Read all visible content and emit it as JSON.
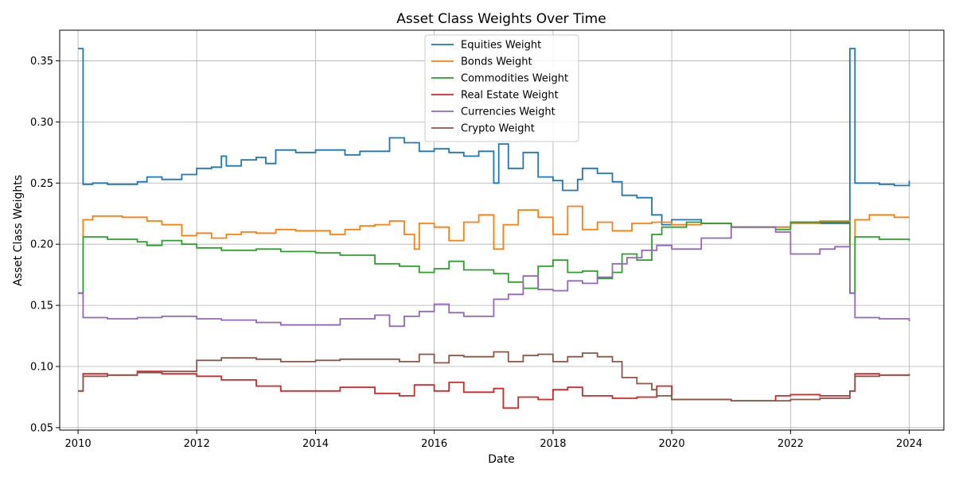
{
  "chart_data": {
    "type": "line",
    "step": true,
    "title": "Asset Class Weights Over Time",
    "xlabel": "Date",
    "ylabel": "Asset Class Weights",
    "xlim": [
      "2009-09-10",
      "2024-08-01"
    ],
    "ylim": [
      0.048,
      0.375
    ],
    "x_ticks": [
      "2010",
      "2012",
      "2014",
      "2016",
      "2018",
      "2020",
      "2022",
      "2024"
    ],
    "y_ticks": [
      "0.05",
      "0.10",
      "0.15",
      "0.20",
      "0.25",
      "0.30",
      "0.35"
    ],
    "grid": true,
    "legend_position": "top-center",
    "series": [
      {
        "name": "Equities Weight",
        "color": "#1f77b4",
        "points": [
          [
            "2010-01-01",
            0.36
          ],
          [
            "2010-02-01",
            0.249
          ],
          [
            "2010-04-01",
            0.25
          ],
          [
            "2010-07-01",
            0.249
          ],
          [
            "2010-10-01",
            0.249
          ],
          [
            "2011-01-01",
            0.251
          ],
          [
            "2011-03-01",
            0.255
          ],
          [
            "2011-06-01",
            0.253
          ],
          [
            "2011-10-01",
            0.257
          ],
          [
            "2012-01-01",
            0.262
          ],
          [
            "2012-04-01",
            0.263
          ],
          [
            "2012-06-01",
            0.272
          ],
          [
            "2012-07-01",
            0.264
          ],
          [
            "2012-10-01",
            0.269
          ],
          [
            "2013-01-01",
            0.271
          ],
          [
            "2013-03-01",
            0.266
          ],
          [
            "2013-05-01",
            0.277
          ],
          [
            "2013-09-01",
            0.275
          ],
          [
            "2014-01-01",
            0.277
          ],
          [
            "2014-07-01",
            0.273
          ],
          [
            "2014-10-01",
            0.276
          ],
          [
            "2015-01-01",
            0.276
          ],
          [
            "2015-04-01",
            0.287
          ],
          [
            "2015-07-01",
            0.283
          ],
          [
            "2015-10-01",
            0.276
          ],
          [
            "2016-01-01",
            0.278
          ],
          [
            "2016-04-01",
            0.275
          ],
          [
            "2016-07-01",
            0.272
          ],
          [
            "2016-10-01",
            0.276
          ],
          [
            "2017-01-01",
            0.25
          ],
          [
            "2017-02-01",
            0.282
          ],
          [
            "2017-04-01",
            0.262
          ],
          [
            "2017-07-01",
            0.275
          ],
          [
            "2017-10-01",
            0.255
          ],
          [
            "2018-01-01",
            0.252
          ],
          [
            "2018-03-01",
            0.244
          ],
          [
            "2018-06-01",
            0.253
          ],
          [
            "2018-07-01",
            0.262
          ],
          [
            "2018-10-01",
            0.258
          ],
          [
            "2019-01-01",
            0.251
          ],
          [
            "2019-03-01",
            0.24
          ],
          [
            "2019-06-01",
            0.238
          ],
          [
            "2019-09-01",
            0.224
          ],
          [
            "2019-11-01",
            0.216
          ],
          [
            "2020-01-01",
            0.22
          ],
          [
            "2020-07-01",
            0.217
          ],
          [
            "2021-01-01",
            0.214
          ],
          [
            "2022-01-01",
            0.218
          ],
          [
            "2022-07-01",
            0.217
          ],
          [
            "2023-01-01",
            0.36
          ],
          [
            "2023-02-01",
            0.25
          ],
          [
            "2023-07-01",
            0.249
          ],
          [
            "2023-10-01",
            0.248
          ],
          [
            "2024-01-01",
            0.252
          ]
        ]
      },
      {
        "name": "Bonds Weight",
        "color": "#ff7f0e",
        "points": [
          [
            "2010-01-01",
            0.16
          ],
          [
            "2010-02-01",
            0.22
          ],
          [
            "2010-04-01",
            0.223
          ],
          [
            "2010-10-01",
            0.222
          ],
          [
            "2011-03-01",
            0.219
          ],
          [
            "2011-06-01",
            0.216
          ],
          [
            "2011-10-01",
            0.207
          ],
          [
            "2012-01-01",
            0.209
          ],
          [
            "2012-04-01",
            0.205
          ],
          [
            "2012-07-01",
            0.208
          ],
          [
            "2012-10-01",
            0.21
          ],
          [
            "2013-01-01",
            0.209
          ],
          [
            "2013-05-01",
            0.212
          ],
          [
            "2013-09-01",
            0.211
          ],
          [
            "2014-01-01",
            0.211
          ],
          [
            "2014-04-01",
            0.208
          ],
          [
            "2014-07-01",
            0.212
          ],
          [
            "2014-10-01",
            0.215
          ],
          [
            "2015-01-01",
            0.216
          ],
          [
            "2015-04-01",
            0.219
          ],
          [
            "2015-07-01",
            0.208
          ],
          [
            "2015-09-01",
            0.196
          ],
          [
            "2015-10-01",
            0.217
          ],
          [
            "2016-01-01",
            0.214
          ],
          [
            "2016-04-01",
            0.203
          ],
          [
            "2016-07-01",
            0.218
          ],
          [
            "2016-10-01",
            0.224
          ],
          [
            "2017-01-01",
            0.196
          ],
          [
            "2017-03-01",
            0.216
          ],
          [
            "2017-06-01",
            0.228
          ],
          [
            "2017-10-01",
            0.222
          ],
          [
            "2018-01-01",
            0.208
          ],
          [
            "2018-04-01",
            0.231
          ],
          [
            "2018-07-01",
            0.212
          ],
          [
            "2018-10-01",
            0.218
          ],
          [
            "2019-01-01",
            0.211
          ],
          [
            "2019-05-01",
            0.217
          ],
          [
            "2019-09-01",
            0.218
          ],
          [
            "2020-01-01",
            0.216
          ],
          [
            "2020-07-01",
            0.217
          ],
          [
            "2021-01-01",
            0.214
          ],
          [
            "2022-01-01",
            0.217
          ],
          [
            "2022-07-01",
            0.219
          ],
          [
            "2023-01-01",
            0.16
          ],
          [
            "2023-02-01",
            0.22
          ],
          [
            "2023-05-01",
            0.224
          ],
          [
            "2023-10-01",
            0.222
          ],
          [
            "2024-01-01",
            0.222
          ]
        ]
      },
      {
        "name": "Commodities Weight",
        "color": "#2ca02c",
        "points": [
          [
            "2010-01-01",
            0.16
          ],
          [
            "2010-02-01",
            0.206
          ],
          [
            "2010-07-01",
            0.204
          ],
          [
            "2011-01-01",
            0.202
          ],
          [
            "2011-03-01",
            0.199
          ],
          [
            "2011-06-01",
            0.203
          ],
          [
            "2011-10-01",
            0.2
          ],
          [
            "2012-01-01",
            0.197
          ],
          [
            "2012-06-01",
            0.195
          ],
          [
            "2013-01-01",
            0.196
          ],
          [
            "2013-06-01",
            0.194
          ],
          [
            "2014-01-01",
            0.193
          ],
          [
            "2014-06-01",
            0.191
          ],
          [
            "2015-01-01",
            0.184
          ],
          [
            "2015-06-01",
            0.182
          ],
          [
            "2015-10-01",
            0.177
          ],
          [
            "2016-01-01",
            0.18
          ],
          [
            "2016-04-01",
            0.186
          ],
          [
            "2016-07-01",
            0.179
          ],
          [
            "2017-01-01",
            0.176
          ],
          [
            "2017-04-01",
            0.169
          ],
          [
            "2017-07-01",
            0.164
          ],
          [
            "2017-10-01",
            0.182
          ],
          [
            "2018-01-01",
            0.187
          ],
          [
            "2018-04-01",
            0.177
          ],
          [
            "2018-07-01",
            0.178
          ],
          [
            "2018-10-01",
            0.172
          ],
          [
            "2019-01-01",
            0.177
          ],
          [
            "2019-03-01",
            0.192
          ],
          [
            "2019-06-01",
            0.187
          ],
          [
            "2019-09-01",
            0.208
          ],
          [
            "2019-11-01",
            0.214
          ],
          [
            "2020-04-01",
            0.218
          ],
          [
            "2020-07-01",
            0.217
          ],
          [
            "2021-01-01",
            0.214
          ],
          [
            "2021-10-01",
            0.212
          ],
          [
            "2022-01-01",
            0.218
          ],
          [
            "2022-07-01",
            0.218
          ],
          [
            "2023-01-01",
            0.16
          ],
          [
            "2023-02-01",
            0.206
          ],
          [
            "2023-07-01",
            0.204
          ],
          [
            "2024-01-01",
            0.203
          ]
        ]
      },
      {
        "name": "Real Estate Weight",
        "color": "#d62728",
        "points": [
          [
            "2010-01-01",
            0.08
          ],
          [
            "2010-02-01",
            0.094
          ],
          [
            "2010-07-01",
            0.093
          ],
          [
            "2011-01-01",
            0.096
          ],
          [
            "2011-06-01",
            0.094
          ],
          [
            "2012-01-01",
            0.092
          ],
          [
            "2012-06-01",
            0.089
          ],
          [
            "2013-01-01",
            0.084
          ],
          [
            "2013-06-01",
            0.08
          ],
          [
            "2014-01-01",
            0.08
          ],
          [
            "2014-06-01",
            0.083
          ],
          [
            "2015-01-01",
            0.078
          ],
          [
            "2015-06-01",
            0.076
          ],
          [
            "2015-09-01",
            0.085
          ],
          [
            "2016-01-01",
            0.08
          ],
          [
            "2016-04-01",
            0.087
          ],
          [
            "2016-07-01",
            0.079
          ],
          [
            "2017-01-01",
            0.082
          ],
          [
            "2017-03-01",
            0.066
          ],
          [
            "2017-06-01",
            0.075
          ],
          [
            "2017-10-01",
            0.073
          ],
          [
            "2018-01-01",
            0.081
          ],
          [
            "2018-04-01",
            0.083
          ],
          [
            "2018-07-01",
            0.076
          ],
          [
            "2019-01-01",
            0.074
          ],
          [
            "2019-06-01",
            0.075
          ],
          [
            "2019-10-01",
            0.084
          ],
          [
            "2020-01-01",
            0.073
          ],
          [
            "2021-01-01",
            0.072
          ],
          [
            "2021-10-01",
            0.076
          ],
          [
            "2022-01-01",
            0.077
          ],
          [
            "2022-07-01",
            0.076
          ],
          [
            "2023-01-01",
            0.08
          ],
          [
            "2023-02-01",
            0.094
          ],
          [
            "2023-07-01",
            0.093
          ],
          [
            "2024-01-01",
            0.093
          ]
        ]
      },
      {
        "name": "Currencies Weight",
        "color": "#9467bd",
        "points": [
          [
            "2010-01-01",
            0.16
          ],
          [
            "2010-02-01",
            0.14
          ],
          [
            "2010-07-01",
            0.139
          ],
          [
            "2011-01-01",
            0.14
          ],
          [
            "2011-06-01",
            0.141
          ],
          [
            "2012-01-01",
            0.139
          ],
          [
            "2012-06-01",
            0.138
          ],
          [
            "2013-01-01",
            0.136
          ],
          [
            "2013-06-01",
            0.134
          ],
          [
            "2014-01-01",
            0.134
          ],
          [
            "2014-06-01",
            0.139
          ],
          [
            "2015-01-01",
            0.142
          ],
          [
            "2015-04-01",
            0.133
          ],
          [
            "2015-07-01",
            0.141
          ],
          [
            "2015-10-01",
            0.145
          ],
          [
            "2016-01-01",
            0.151
          ],
          [
            "2016-04-01",
            0.144
          ],
          [
            "2016-07-01",
            0.141
          ],
          [
            "2017-01-01",
            0.155
          ],
          [
            "2017-04-01",
            0.159
          ],
          [
            "2017-07-01",
            0.174
          ],
          [
            "2017-10-01",
            0.163
          ],
          [
            "2018-01-01",
            0.162
          ],
          [
            "2018-04-01",
            0.17
          ],
          [
            "2018-07-01",
            0.168
          ],
          [
            "2018-10-01",
            0.173
          ],
          [
            "2019-01-01",
            0.184
          ],
          [
            "2019-04-01",
            0.189
          ],
          [
            "2019-07-01",
            0.195
          ],
          [
            "2019-10-01",
            0.199
          ],
          [
            "2020-01-01",
            0.196
          ],
          [
            "2020-07-01",
            0.205
          ],
          [
            "2021-01-01",
            0.214
          ],
          [
            "2021-10-01",
            0.21
          ],
          [
            "2022-01-01",
            0.192
          ],
          [
            "2022-07-01",
            0.196
          ],
          [
            "2022-10-01",
            0.198
          ],
          [
            "2023-01-01",
            0.16
          ],
          [
            "2023-02-01",
            0.14
          ],
          [
            "2023-07-01",
            0.139
          ],
          [
            "2024-01-01",
            0.137
          ]
        ]
      },
      {
        "name": "Crypto Weight",
        "color": "#8c564b",
        "points": [
          [
            "2010-01-01",
            0.08
          ],
          [
            "2010-02-01",
            0.092
          ],
          [
            "2010-07-01",
            0.093
          ],
          [
            "2011-01-01",
            0.095
          ],
          [
            "2011-06-01",
            0.096
          ],
          [
            "2012-01-01",
            0.105
          ],
          [
            "2012-06-01",
            0.107
          ],
          [
            "2013-01-01",
            0.106
          ],
          [
            "2013-06-01",
            0.104
          ],
          [
            "2014-01-01",
            0.105
          ],
          [
            "2014-06-01",
            0.106
          ],
          [
            "2015-01-01",
            0.106
          ],
          [
            "2015-06-01",
            0.104
          ],
          [
            "2015-10-01",
            0.11
          ],
          [
            "2016-01-01",
            0.103
          ],
          [
            "2016-04-01",
            0.109
          ],
          [
            "2016-07-01",
            0.108
          ],
          [
            "2017-01-01",
            0.112
          ],
          [
            "2017-04-01",
            0.104
          ],
          [
            "2017-07-01",
            0.109
          ],
          [
            "2017-10-01",
            0.11
          ],
          [
            "2018-01-01",
            0.104
          ],
          [
            "2018-04-01",
            0.108
          ],
          [
            "2018-07-01",
            0.111
          ],
          [
            "2018-10-01",
            0.108
          ],
          [
            "2019-01-01",
            0.104
          ],
          [
            "2019-03-01",
            0.091
          ],
          [
            "2019-06-01",
            0.086
          ],
          [
            "2019-09-01",
            0.081
          ],
          [
            "2019-10-01",
            0.076
          ],
          [
            "2020-01-01",
            0.073
          ],
          [
            "2021-01-01",
            0.072
          ],
          [
            "2022-01-01",
            0.073
          ],
          [
            "2022-07-01",
            0.074
          ],
          [
            "2023-01-01",
            0.08
          ],
          [
            "2023-02-01",
            0.092
          ],
          [
            "2023-07-01",
            0.093
          ],
          [
            "2024-01-01",
            0.094
          ]
        ]
      }
    ]
  }
}
